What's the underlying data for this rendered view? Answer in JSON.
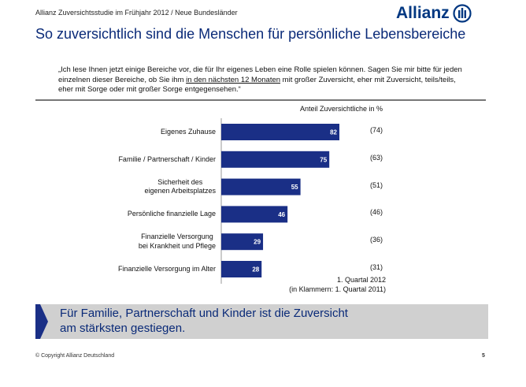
{
  "header": {
    "subtitle": "Allianz Zuversichtsstudie im Frühjahr 2012 / Neue Bundesländer",
    "logo_text": "Allianz",
    "title": "So zuversichtlich sind die Menschen für persönliche Lebensbereiche"
  },
  "question": {
    "part1": "„Ich lese Ihnen jetzt einige Bereiche vor, die für Ihr eigenes Leben eine Rolle spielen können. Sagen Sie mir bitte für jeden einzelnen dieser Bereiche, ob Sie ihm ",
    "underlined": "in den nächsten 12 Monaten",
    "part2": " mit großer Zuversicht, eher mit Zuversicht, teils/teils, eher mit Sorge oder mit großer Sorge entgegensehen.“"
  },
  "chart_data": {
    "type": "bar",
    "orientation": "horizontal",
    "title": "Anteil Zuversichtliche in %",
    "categories": [
      "Eigenes Zuhause",
      "Familie / Partnerschaft / Kinder",
      "Sicherheit des\neigenen Arbeitsplatzes",
      "Persönliche finanzielle Lage",
      "Finanzielle Versorgung\nbei Krankheit und Pflege",
      "Finanzielle Versorgung im Alter"
    ],
    "series": [
      {
        "name": "1. Quartal 2012",
        "values": [
          82,
          75,
          55,
          46,
          29,
          28
        ]
      },
      {
        "name": "1. Quartal 2011",
        "values": [
          74,
          63,
          51,
          46,
          36,
          31
        ]
      }
    ],
    "previous_labels": [
      "(74)",
      "(63)",
      "(51)",
      "(46)",
      "(36)",
      "(31)"
    ],
    "note_line1": "1. Quartal 2012",
    "note_line2": "(in Klammern: 1. Quartal 2011)",
    "xlim": [
      0,
      100
    ],
    "grid": false,
    "bar_color": "#1a2f86"
  },
  "banner": {
    "line1": "Für Familie, Partnerschaft und Kinder ist die Zuversicht",
    "line2": "am stärksten gestiegen."
  },
  "footer": {
    "copyright": "© Copyright Allianz Deutschland",
    "page": "5"
  },
  "colors": {
    "brand": "#003781",
    "title": "#0a2a78",
    "banner_bg": "#d0d0d0"
  }
}
